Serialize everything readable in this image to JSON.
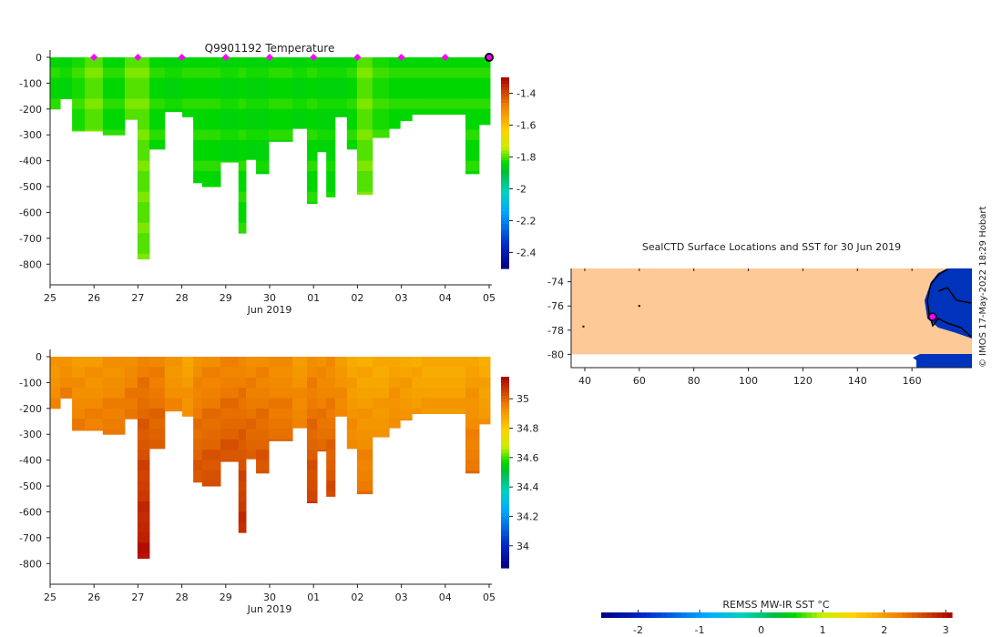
{
  "chart_data": [
    {
      "type": "heatmap",
      "title": "Q9901192  Temperature",
      "variable": "temperature",
      "xlabel": "Jun 2019",
      "x_tick_labels": [
        "25",
        "26",
        "27",
        "28",
        "29",
        "30",
        "01",
        "02",
        "03",
        "04",
        "05"
      ],
      "ylim": [
        -880,
        0
      ],
      "y_ticks": [
        0,
        -100,
        -200,
        -300,
        -400,
        -500,
        -600,
        -700,
        -800
      ],
      "colorbar": {
        "range": [
          -2.5,
          -1.3
        ],
        "ticks": [
          -1.4,
          -1.6,
          -1.8,
          -2,
          -2.2,
          -2.4
        ]
      },
      "marker_days": [
        1,
        2,
        3,
        4,
        5,
        6,
        7,
        8,
        9
      ],
      "current_day": 10
    },
    {
      "type": "heatmap",
      "title": "",
      "variable": "salinity",
      "xlabel": "Jun 2019",
      "x_tick_labels": [
        "25",
        "26",
        "27",
        "28",
        "29",
        "30",
        "01",
        "02",
        "03",
        "04",
        "05"
      ],
      "ylim": [
        -880,
        0
      ],
      "y_ticks": [
        0,
        -100,
        -200,
        -300,
        -400,
        -500,
        -600,
        -700,
        -800
      ],
      "colorbar": {
        "range": [
          33.85,
          35.15
        ],
        "ticks": [
          35,
          34.8,
          34.6,
          34.4,
          34.2,
          34
        ]
      }
    },
    {
      "type": "map",
      "title": "SealCTD Surface Locations and SST for 30 Jun 2019",
      "xlim": [
        35,
        182
      ],
      "ylim": [
        -81.1,
        -72.9
      ],
      "x_ticks": [
        40,
        60,
        80,
        100,
        120,
        140,
        160
      ],
      "y_ticks": [
        -74,
        -76,
        -78,
        -80
      ],
      "points": [
        [
          60,
          -76
        ],
        [
          39.5,
          -77.7
        ]
      ],
      "current_position": [
        167.5,
        -76.9
      ],
      "colorbar": {
        "label": "REMSS MW-IR SST °C",
        "range": [
          -2.6,
          3.1
        ],
        "ticks": [
          -2,
          -1,
          0,
          1,
          2,
          3
        ]
      }
    }
  ],
  "profiles": [
    {
      "t0": 0,
      "t1": 0.23,
      "depth": 200,
      "temp": -1.84,
      "sal": 34.9
    },
    {
      "t0": 0.23,
      "t1": 0.5,
      "depth": 160,
      "temp": -1.85,
      "sal": 34.92
    },
    {
      "t0": 0.5,
      "t1": 0.79,
      "depth": 285,
      "temp": -1.83,
      "sal": 34.9
    },
    {
      "t0": 0.79,
      "t1": 1.2,
      "depth": 285,
      "temp": -1.8,
      "sal": 34.9
    },
    {
      "t0": 1.2,
      "t1": 1.7,
      "depth": 300,
      "temp": -1.84,
      "sal": 34.91
    },
    {
      "t0": 1.7,
      "t1": 1.99,
      "depth": 240,
      "temp": -1.8,
      "sal": 34.93
    },
    {
      "t0": 1.99,
      "t1": 2.26,
      "depth": 780,
      "temp": -1.8,
      "sal": 34.95
    },
    {
      "t0": 2.26,
      "t1": 2.61,
      "depth": 355,
      "temp": -1.84,
      "sal": 34.94
    },
    {
      "t0": 2.61,
      "t1": 3.01,
      "depth": 210,
      "temp": -1.85,
      "sal": 34.9
    },
    {
      "t0": 3.01,
      "t1": 3.26,
      "depth": 230,
      "temp": -1.84,
      "sal": 34.88
    },
    {
      "t0": 3.26,
      "t1": 3.46,
      "depth": 485,
      "temp": -1.84,
      "sal": 34.92
    },
    {
      "t0": 3.46,
      "t1": 3.88,
      "depth": 500,
      "temp": -1.84,
      "sal": 34.93
    },
    {
      "t0": 3.88,
      "t1": 4.29,
      "depth": 405,
      "temp": -1.85,
      "sal": 34.94
    },
    {
      "t0": 4.29,
      "t1": 4.46,
      "depth": 680,
      "temp": -1.84,
      "sal": 34.94
    },
    {
      "t0": 4.46,
      "t1": 4.69,
      "depth": 395,
      "temp": -1.85,
      "sal": 34.93
    },
    {
      "t0": 4.69,
      "t1": 4.98,
      "depth": 450,
      "temp": -1.85,
      "sal": 34.93
    },
    {
      "t0": 4.98,
      "t1": 5.52,
      "depth": 325,
      "temp": -1.84,
      "sal": 34.92
    },
    {
      "t0": 5.52,
      "t1": 5.85,
      "depth": 275,
      "temp": -1.85,
      "sal": 34.9
    },
    {
      "t0": 5.85,
      "t1": 6.08,
      "depth": 565,
      "temp": -1.84,
      "sal": 34.93
    },
    {
      "t0": 6.08,
      "t1": 6.29,
      "depth": 365,
      "temp": -1.85,
      "sal": 34.92
    },
    {
      "t0": 6.29,
      "t1": 6.49,
      "depth": 540,
      "temp": -1.85,
      "sal": 34.92
    },
    {
      "t0": 6.49,
      "t1": 6.76,
      "depth": 230,
      "temp": -1.85,
      "sal": 34.9
    },
    {
      "t0": 6.76,
      "t1": 6.99,
      "depth": 355,
      "temp": -1.84,
      "sal": 34.87
    },
    {
      "t0": 6.99,
      "t1": 7.34,
      "depth": 530,
      "temp": -1.8,
      "sal": 34.86
    },
    {
      "t0": 7.34,
      "t1": 7.72,
      "depth": 310,
      "temp": -1.83,
      "sal": 34.86
    },
    {
      "t0": 7.72,
      "t1": 7.97,
      "depth": 275,
      "temp": -1.84,
      "sal": 34.88
    },
    {
      "t0": 7.97,
      "t1": 8.24,
      "depth": 245,
      "temp": -1.84,
      "sal": 34.87
    },
    {
      "t0": 8.24,
      "t1": 8.46,
      "depth": 220,
      "temp": -1.84,
      "sal": 34.86
    },
    {
      "t0": 8.46,
      "t1": 9.46,
      "depth": 220,
      "temp": -1.84,
      "sal": 34.86
    },
    {
      "t0": 9.46,
      "t1": 9.77,
      "depth": 450,
      "temp": -1.84,
      "sal": 34.88
    },
    {
      "t0": 9.77,
      "t1": 10.02,
      "depth": 260,
      "temp": -1.84,
      "sal": 34.86
    }
  ],
  "credit": "© IMOS 17-May-2022 18:29 Hobart"
}
